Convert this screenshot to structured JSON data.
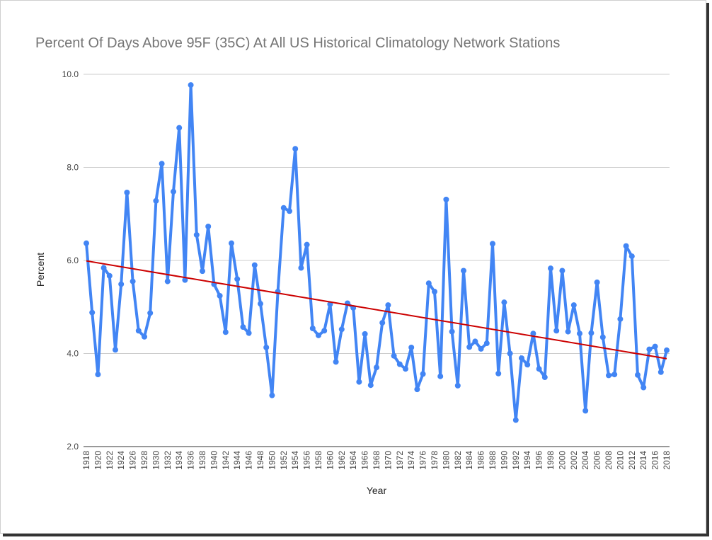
{
  "chart_data": {
    "type": "line",
    "title": "Percent Of Days Above 95F (35C) At All US Historical Climatology Network Stations",
    "xlabel": "Year",
    "ylabel": "Percent",
    "ylim": [
      2.0,
      10.0
    ],
    "yticks": [
      "2.0",
      "4.0",
      "6.0",
      "8.0",
      "10.0"
    ],
    "grid": true,
    "x": [
      1918,
      1919,
      1920,
      1921,
      1922,
      1923,
      1924,
      1925,
      1926,
      1927,
      1928,
      1929,
      1930,
      1931,
      1932,
      1933,
      1934,
      1935,
      1936,
      1937,
      1938,
      1939,
      1940,
      1941,
      1942,
      1943,
      1944,
      1945,
      1946,
      1947,
      1948,
      1949,
      1950,
      1951,
      1952,
      1953,
      1954,
      1955,
      1956,
      1957,
      1958,
      1959,
      1960,
      1961,
      1962,
      1963,
      1964,
      1965,
      1966,
      1967,
      1968,
      1969,
      1970,
      1971,
      1972,
      1973,
      1974,
      1975,
      1976,
      1977,
      1978,
      1979,
      1980,
      1981,
      1982,
      1983,
      1984,
      1985,
      1986,
      1987,
      1988,
      1989,
      1990,
      1991,
      1992,
      1993,
      1994,
      1995,
      1996,
      1997,
      1998,
      1999,
      2000,
      2001,
      2002,
      2003,
      2004,
      2005,
      2006,
      2007,
      2008,
      2009,
      2010,
      2011,
      2012,
      2013,
      2014,
      2015,
      2016,
      2017,
      2018
    ],
    "series": [
      {
        "color": "#4285f4",
        "values": [
          6.37,
          4.88,
          3.55,
          5.84,
          5.67,
          4.08,
          5.49,
          7.46,
          5.55,
          4.49,
          4.36,
          4.87,
          7.28,
          8.08,
          5.55,
          7.48,
          8.85,
          5.58,
          9.77,
          6.55,
          5.77,
          6.73,
          5.49,
          5.24,
          4.46,
          6.37,
          5.6,
          4.57,
          4.44,
          5.9,
          5.07,
          4.13,
          3.1,
          5.33,
          7.13,
          7.06,
          8.4,
          5.84,
          6.34,
          4.54,
          4.39,
          4.49,
          5.06,
          3.82,
          4.52,
          5.08,
          4.98,
          3.39,
          4.42,
          3.32,
          3.7,
          4.66,
          5.04,
          3.95,
          3.77,
          3.67,
          4.13,
          3.23,
          3.56,
          5.51,
          5.33,
          3.51,
          7.31,
          4.47,
          3.31,
          5.78,
          4.14,
          4.26,
          4.1,
          4.22,
          6.36,
          3.57,
          5.1,
          4.0,
          2.57,
          3.9,
          3.76,
          4.43,
          3.67,
          3.49,
          5.83,
          4.49,
          5.78,
          4.47,
          5.04,
          4.43,
          2.77,
          4.44,
          5.53,
          4.35,
          3.53,
          3.55,
          4.74,
          6.31,
          6.09,
          3.54,
          3.27,
          4.09,
          4.15,
          3.6,
          4.07
        ]
      }
    ],
    "trendline": {
      "color": "#cc0000",
      "start": [
        1918,
        5.99
      ],
      "end": [
        2018,
        3.89
      ]
    },
    "xtick_labels": [
      "1918",
      "1920",
      "1922",
      "1924",
      "1926",
      "1928",
      "1930",
      "1932",
      "1934",
      "1936",
      "1938",
      "1940",
      "1942",
      "1944",
      "1946",
      "1948",
      "1950",
      "1952",
      "1954",
      "1956",
      "1958",
      "1960",
      "1962",
      "1964",
      "1966",
      "1968",
      "1970",
      "1972",
      "1974",
      "1976",
      "1978",
      "1980",
      "1982",
      "1984",
      "1986",
      "1988",
      "1990",
      "1992",
      "1994",
      "1996",
      "1998",
      "2000",
      "2002",
      "2004",
      "2006",
      "2008",
      "2010",
      "2012",
      "2014",
      "2016",
      "2018"
    ]
  }
}
